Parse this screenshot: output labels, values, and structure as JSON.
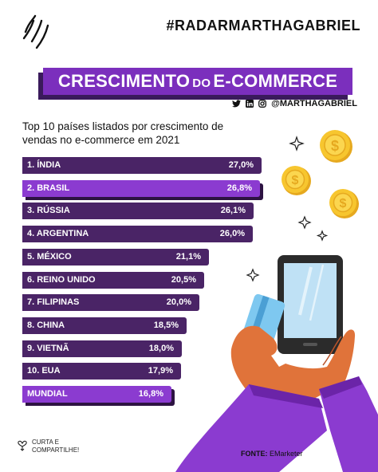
{
  "header": {
    "hashtag_prefix": "#RADAR",
    "brand_name": "MARTHAGABRIEL"
  },
  "title": {
    "part1": "CRESCIMENTO",
    "part2": "DO",
    "part3": "E-COMMERCE"
  },
  "social": {
    "icons": [
      "twitter-icon",
      "linkedin-icon",
      "instagram-icon"
    ],
    "handle": "@MARTHAGABRIEL"
  },
  "subtitle": "Top 10 países listados por crescimento de vendas no e-commerce em 2021",
  "chart_data": {
    "type": "bar",
    "orientation": "horizontal",
    "categories": [
      "1. ÍNDIA",
      "2. BRASIL",
      "3. RÚSSIA",
      "4. ARGENTINA",
      "5. MÉXICO",
      "6. REINO UNIDO",
      "7. FILIPINAS",
      "8. CHINA",
      "9. VIETNÃ",
      "10. EUA",
      "MUNDIAL"
    ],
    "values": [
      27.0,
      26.8,
      26.1,
      26.0,
      21.1,
      20.5,
      20.0,
      18.5,
      18.0,
      17.9,
      16.8
    ],
    "value_labels": [
      "27,0%",
      "26,8%",
      "26,1%",
      "26,0%",
      "21,1%",
      "20,5%",
      "20,0%",
      "18,5%",
      "18,0%",
      "17,9%",
      "16,8%"
    ],
    "highlighted": [
      "2. BRASIL",
      "MUNDIAL"
    ],
    "title": "Top 10 países listados por crescimento de vendas no e-commerce em 2021",
    "xlabel": "",
    "ylabel": "",
    "grid": false,
    "colors": {
      "default": "#4a2466",
      "highlight": "#8b3bd0",
      "shadow": "#2d1342"
    }
  },
  "footer": {
    "share_line1": "CURTA E",
    "share_line2": "COMPARTILHE!",
    "source_label": "FONTE:",
    "source_value": "EMarketer"
  },
  "colors": {
    "brand_purple": "#7b2fbd",
    "dark_purple": "#4a2466",
    "coin_gold": "#f7c62f",
    "hand_orange": "#e0733a"
  }
}
